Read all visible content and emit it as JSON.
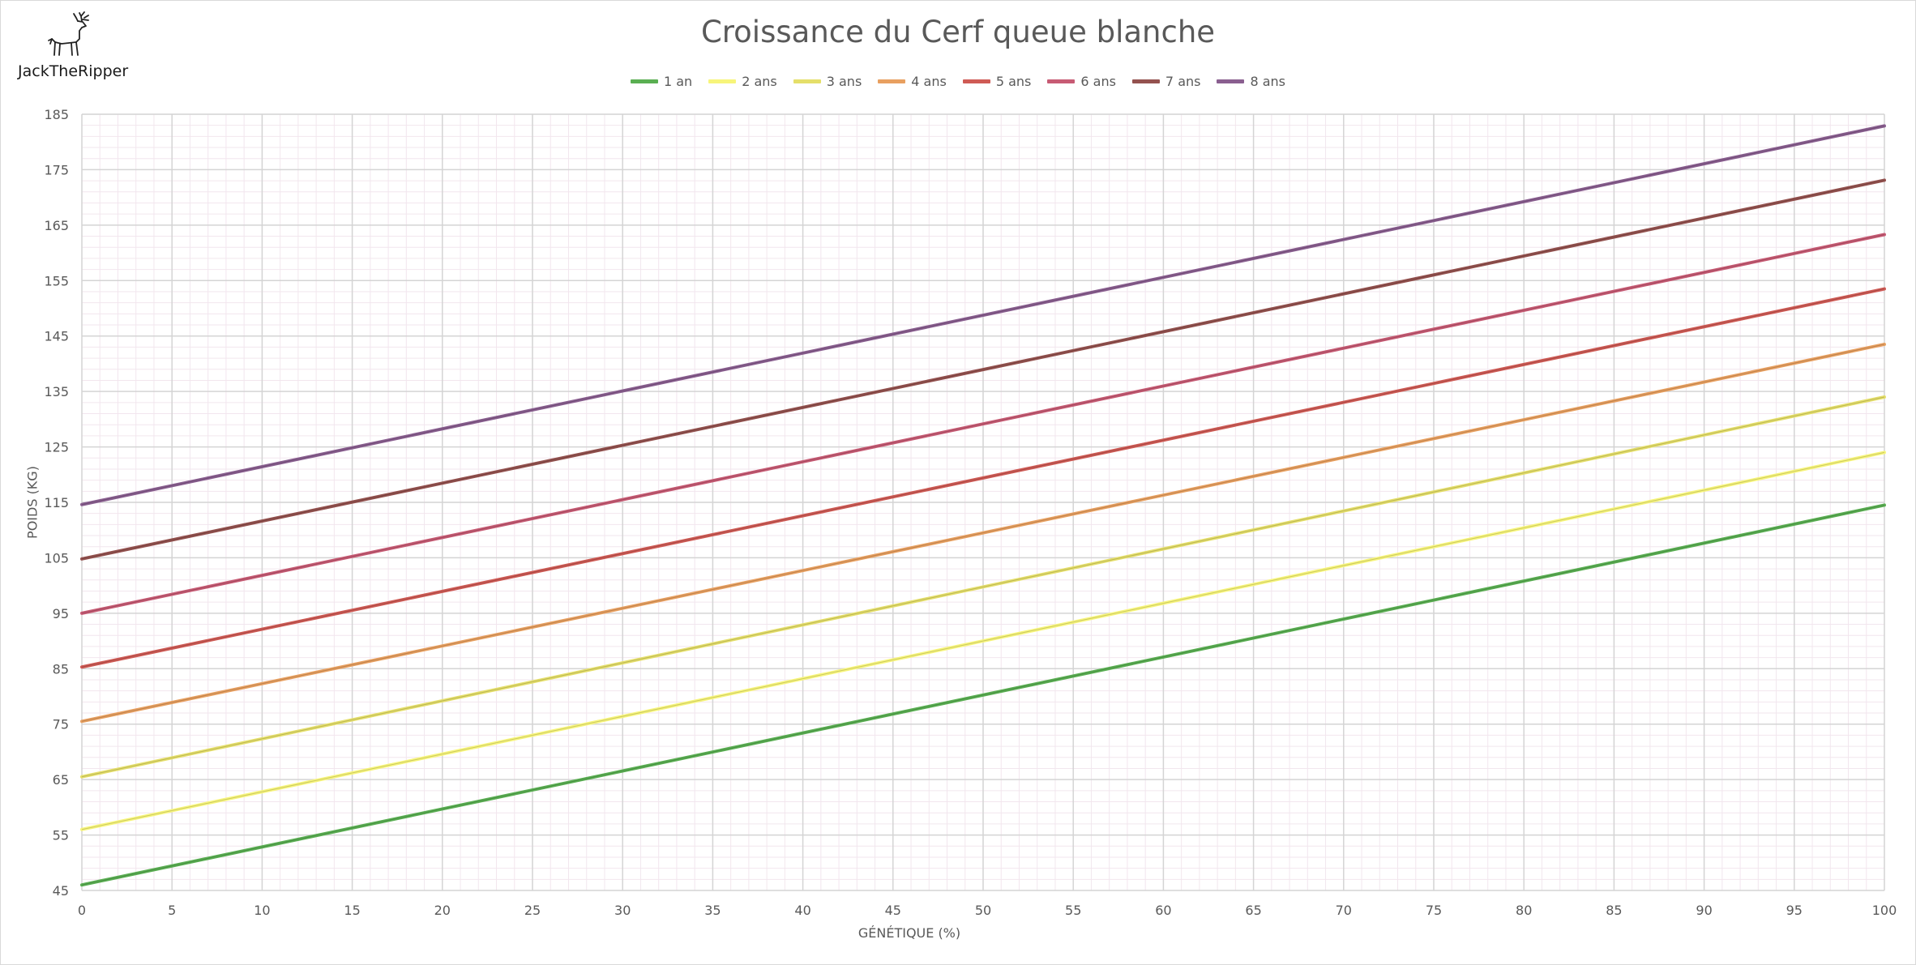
{
  "logo": {
    "label": "JackTheRipper",
    "icon": "deer-icon"
  },
  "chart_data": {
    "type": "line",
    "title": "Croissance du Cerf queue blanche",
    "xlabel": "GÉNÉTIQUE (%)",
    "ylabel": "POIDS (KG)",
    "xlim": [
      0,
      100
    ],
    "ylim": [
      45,
      185
    ],
    "x_ticks": [
      0,
      5,
      10,
      15,
      20,
      25,
      30,
      35,
      40,
      45,
      50,
      55,
      60,
      65,
      70,
      75,
      80,
      85,
      90,
      95,
      100
    ],
    "y_ticks": [
      45,
      55,
      65,
      75,
      85,
      95,
      105,
      115,
      125,
      135,
      145,
      155,
      165,
      175,
      185
    ],
    "grid": true,
    "legend_position": "top-center",
    "series": [
      {
        "name": "1 an",
        "color": "#5aaf52",
        "x": [
          0,
          100
        ],
        "values": [
          46,
          114.5
        ]
      },
      {
        "name": "2 ans",
        "color": "#f7f57a",
        "x": [
          0,
          100
        ],
        "values": [
          56,
          124
        ]
      },
      {
        "name": "3 ans",
        "color": "#e5df6a",
        "x": [
          0,
          100
        ],
        "values": [
          65.5,
          134
        ]
      },
      {
        "name": "4 ans",
        "color": "#e8a060",
        "x": [
          0,
          100
        ],
        "values": [
          75.5,
          143.5
        ]
      },
      {
        "name": "5 ans",
        "color": "#cf5b55",
        "x": [
          0,
          100
        ],
        "values": [
          85.3,
          153.5
        ]
      },
      {
        "name": "6 ans",
        "color": "#c75b74",
        "x": [
          0,
          100
        ],
        "values": [
          95,
          163.3
        ]
      },
      {
        "name": "7 ans",
        "color": "#94524f",
        "x": [
          0,
          100
        ],
        "values": [
          104.8,
          173.1
        ]
      },
      {
        "name": "8 ans",
        "color": "#8a5f90",
        "x": [
          0,
          100
        ],
        "values": [
          114.6,
          182.9
        ]
      }
    ]
  }
}
